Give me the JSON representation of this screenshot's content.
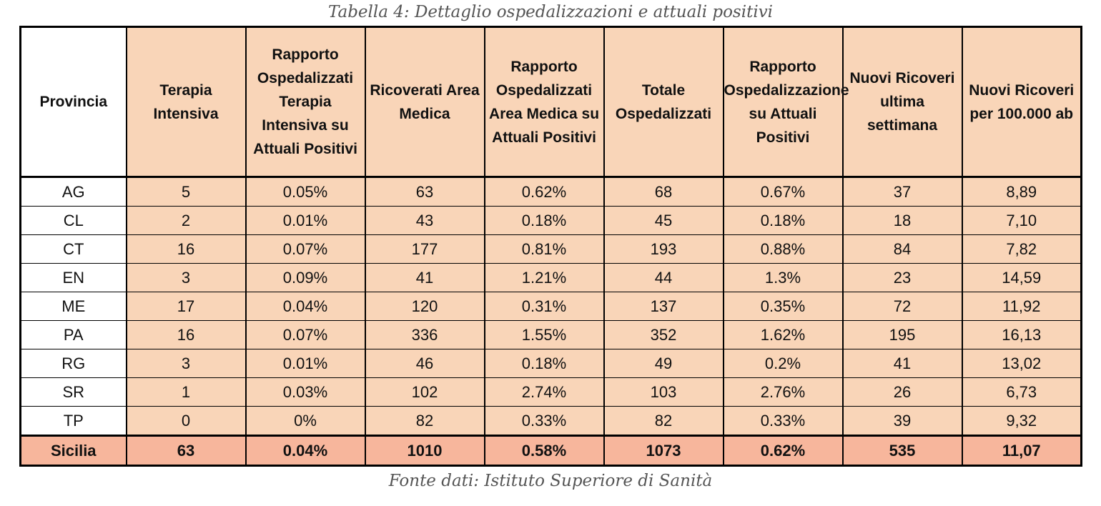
{
  "caption_top": "Tabella 4: Dettaglio ospedalizzazioni e attuali positivi",
  "caption_bottom": "Fonte dati: Istituto Superiore di Sanità",
  "headers": [
    "Provincia",
    "Terapia Intensiva",
    "Rapporto Ospedalizzati Terapia Intensiva su Attuali Positivi",
    "Ricoverati Area Medica",
    "Rapporto Ospedalizzati Area Medica su Attuali Positivi",
    "Totale Ospedalizzati",
    "Rapporto Ospedalizzazione su Attuali Positivi",
    "Nuovi Ricoveri ultima settimana",
    "Nuovi Ricoveri per 100.000 ab"
  ],
  "rows": [
    [
      "AG",
      "5",
      "0.05%",
      "63",
      "0.62%",
      "68",
      "0.67%",
      "37",
      "8,89"
    ],
    [
      "CL",
      "2",
      "0.01%",
      "43",
      "0.18%",
      "45",
      "0.18%",
      "18",
      "7,10"
    ],
    [
      "CT",
      "16",
      "0.07%",
      "177",
      "0.81%",
      "193",
      "0.88%",
      "84",
      "7,82"
    ],
    [
      "EN",
      "3",
      "0.09%",
      "41",
      "1.21%",
      "44",
      "1.3%",
      "23",
      "14,59"
    ],
    [
      "ME",
      "17",
      "0.04%",
      "120",
      "0.31%",
      "137",
      "0.35%",
      "72",
      "11,92"
    ],
    [
      "PA",
      "16",
      "0.07%",
      "336",
      "1.55%",
      "352",
      "1.62%",
      "195",
      "16,13"
    ],
    [
      "RG",
      "3",
      "0.01%",
      "46",
      "0.18%",
      "49",
      "0.2%",
      "41",
      "13,02"
    ],
    [
      "SR",
      "1",
      "0.03%",
      "102",
      "2.74%",
      "103",
      "2.76%",
      "26",
      "6,73"
    ],
    [
      "TP",
      "0",
      "0%",
      "82",
      "0.33%",
      "82",
      "0.33%",
      "39",
      "9,32"
    ]
  ],
  "total": [
    "Sicilia",
    "63",
    "0.04%",
    "1010",
    "0.58%",
    "1073",
    "0.62%",
    "535",
    "11,07"
  ],
  "colors": {
    "header_fill": "#f9d5b8",
    "body_fill": "#f9d5b8",
    "total_fill": "#f7b69c",
    "border": "#000000"
  }
}
